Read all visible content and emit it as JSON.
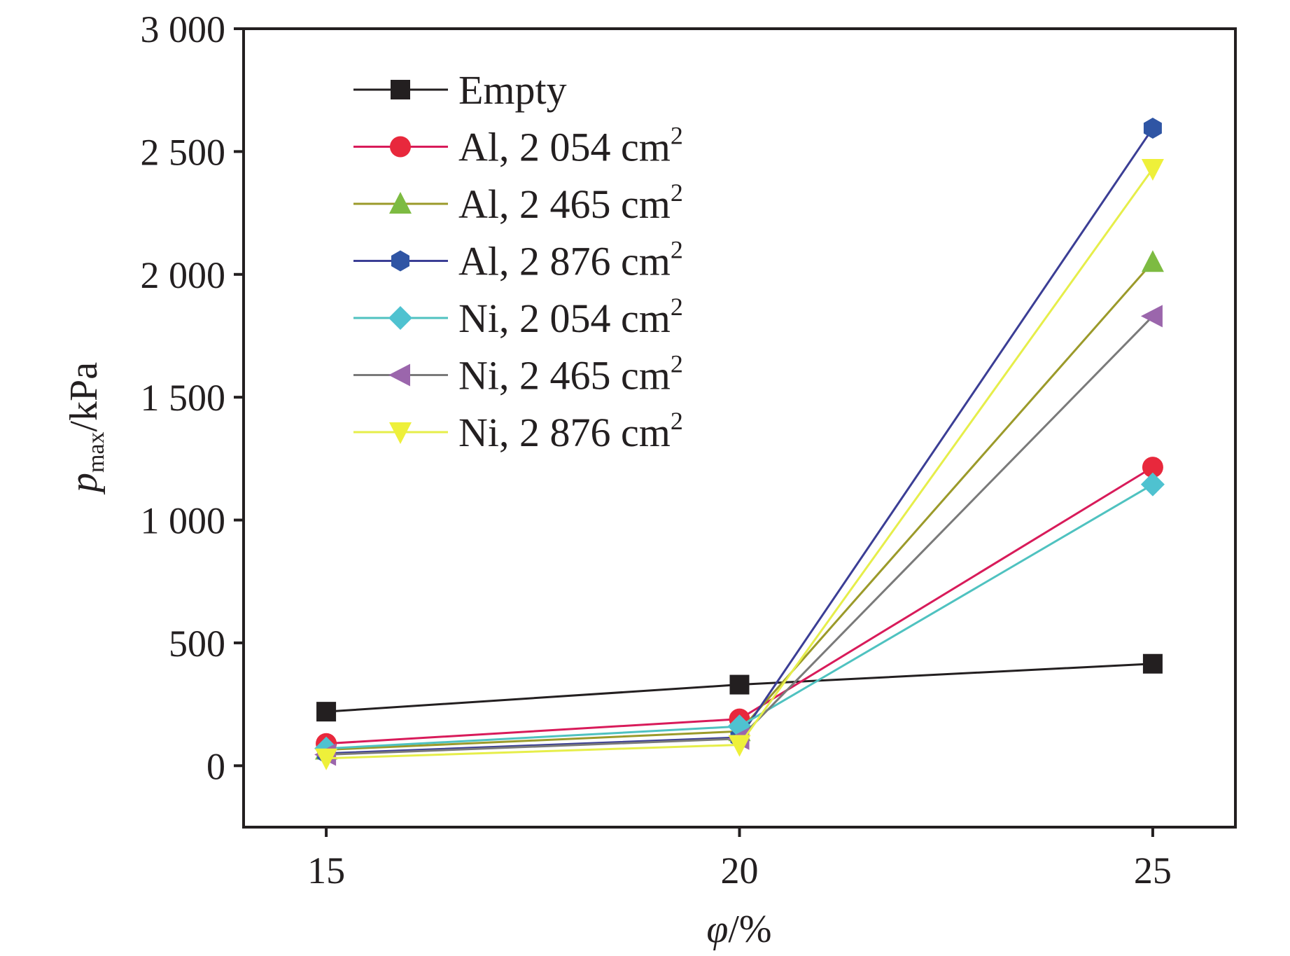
{
  "chart_data": {
    "type": "line",
    "title": "",
    "xlabel": "φ/%",
    "xlabel_symbol": "φ",
    "xlabel_unit": "/%",
    "ylabel": "p_max/kPa",
    "ylabel_symbol": "p",
    "ylabel_subscript": "max",
    "ylabel_unit": "/kPa",
    "x": [
      15,
      20,
      25
    ],
    "xlim": [
      14,
      26
    ],
    "ylim": [
      -250,
      3000
    ],
    "x_ticks": [
      15,
      20,
      25
    ],
    "x_tick_labels": [
      "15",
      "20",
      "25"
    ],
    "y_ticks": [
      0,
      500,
      1000,
      1500,
      2000,
      2500,
      3000
    ],
    "y_tick_labels": [
      "0",
      "500",
      "1 000",
      "1 500",
      "2 000",
      "2 500",
      "3 000"
    ],
    "grid": false,
    "legend_position": "top-left",
    "series": [
      {
        "name": "Empty",
        "label_main": "Empty",
        "label_sup": "",
        "values": [
          220,
          330,
          415
        ],
        "color": "#231f20",
        "line_color": "#231f20",
        "marker": "square"
      },
      {
        "name": "Al, 2 054 cm2",
        "label_main": "Al, 2 054 cm",
        "label_sup": "2",
        "values": [
          90,
          190,
          1215
        ],
        "color": "#e8283c",
        "line_color": "#d81b5a",
        "marker": "circle"
      },
      {
        "name": "Al, 2 465 cm2",
        "label_main": "Al, 2 465 cm",
        "label_sup": "2",
        "values": [
          65,
          140,
          2050
        ],
        "color": "#7dbb42",
        "line_color": "#9b9a2a",
        "marker": "triangle-up"
      },
      {
        "name": "Al, 2 876 cm2",
        "label_main": "Al, 2 876 cm",
        "label_sup": "2",
        "values": [
          50,
          115,
          2595
        ],
        "color": "#2f55a4",
        "line_color": "#3b3e95",
        "marker": "hexagon"
      },
      {
        "name": "Ni, 2 054 cm2",
        "label_main": "Ni, 2 054 cm",
        "label_sup": "2",
        "values": [
          70,
          160,
          1145
        ],
        "color": "#4fc2d0",
        "line_color": "#4fc2c0",
        "marker": "diamond"
      },
      {
        "name": "Ni, 2 465 cm2",
        "label_main": "Ni, 2 465 cm",
        "label_sup": "2",
        "values": [
          45,
          110,
          1830
        ],
        "color": "#9b66ac",
        "line_color": "#7a7a7a",
        "marker": "triangle-left"
      },
      {
        "name": "Ni, 2 876 cm2",
        "label_main": "Ni, 2 876 cm",
        "label_sup": "2",
        "values": [
          30,
          85,
          2430
        ],
        "color": "#eef03a",
        "line_color": "#e6ee4a",
        "marker": "triangle-down"
      }
    ]
  }
}
